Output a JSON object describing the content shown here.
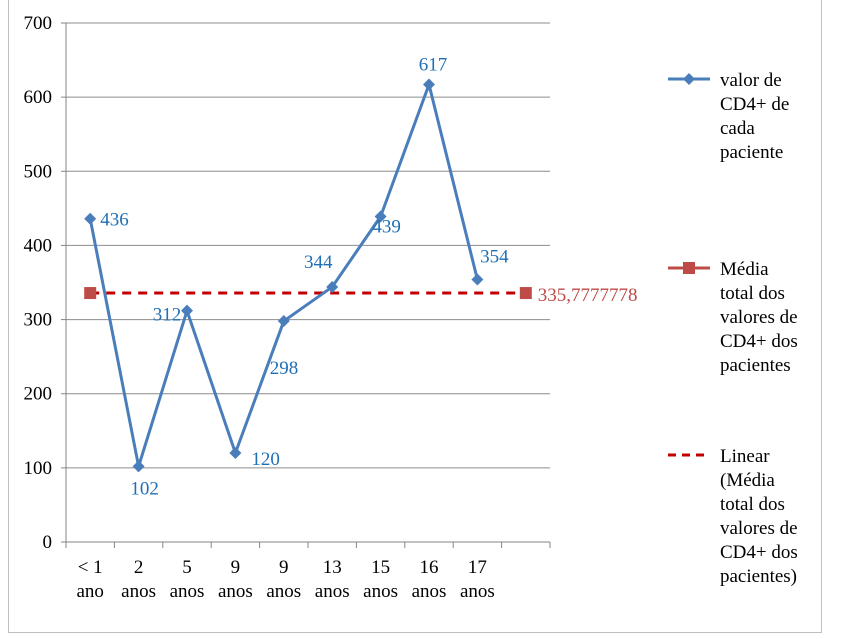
{
  "chart_data": {
    "type": "line",
    "categories": [
      [
        "< 1",
        "ano"
      ],
      [
        "2",
        "anos"
      ],
      [
        "5",
        "anos"
      ],
      [
        "9",
        "anos"
      ],
      [
        "9",
        "anos"
      ],
      [
        "13",
        "anos"
      ],
      [
        "15",
        "anos"
      ],
      [
        "16",
        "anos"
      ],
      [
        "17",
        "anos"
      ]
    ],
    "ylim": [
      0,
      700
    ],
    "yticks": [
      0,
      100,
      200,
      300,
      400,
      500,
      600,
      700
    ],
    "grid": true,
    "legend_position": "right",
    "series": [
      {
        "name": "valor de CD4+ de cada paciente",
        "legend_lines": [
          "valor de",
          "CD4+ de",
          "cada",
          "paciente"
        ],
        "values": [
          436,
          102,
          312,
          120,
          298,
          344,
          439,
          617,
          354
        ],
        "labels": [
          "436",
          "102",
          "312",
          "120",
          "298",
          "344",
          "439",
          "617",
          "354"
        ],
        "color": "#4a7ebb",
        "label_color": "#1f6fb4",
        "marker": "diamond"
      },
      {
        "name": "Média total dos valores de CD4+ dos pacientes",
        "legend_lines": [
          "Média",
          "total dos",
          "valores de",
          "CD4+ dos",
          "pacientes"
        ],
        "value": 335.7777778,
        "label": "335,7777778",
        "color": "#be4b48",
        "marker": "square"
      },
      {
        "name": "Linear (Média total dos valores de CD4+ dos pacientes)",
        "legend_lines": [
          "Linear",
          "(Média",
          "total dos",
          "valores de",
          "CD4+ dos",
          "pacientes)"
        ],
        "color": "#c00000",
        "style": "dashed"
      }
    ]
  }
}
